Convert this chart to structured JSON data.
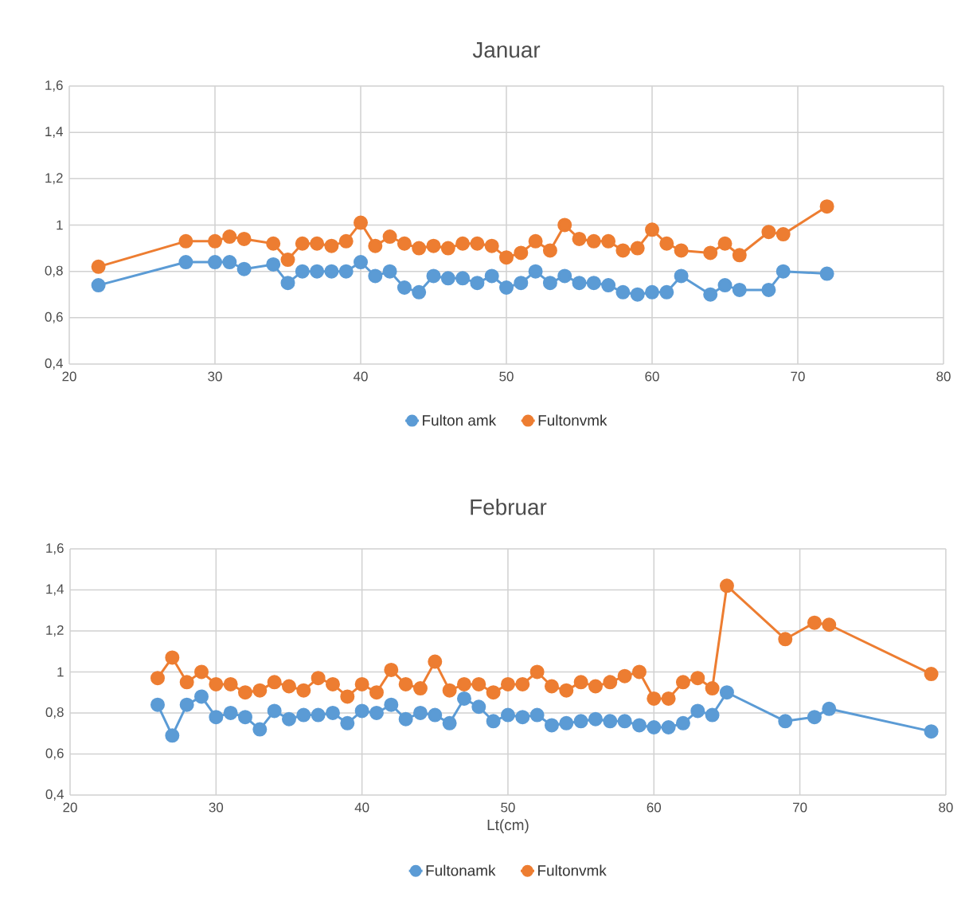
{
  "chart_data": [
    {
      "type": "line",
      "title": "Januar",
      "xlim": [
        20,
        80
      ],
      "xticks": [
        20,
        30,
        40,
        50,
        60,
        70,
        80
      ],
      "ylim": [
        0.4,
        1.6
      ],
      "yticks": [
        {
          "value": 0.4,
          "label": "0,4"
        },
        {
          "value": 0.6,
          "label": "0,6"
        },
        {
          "value": 0.8,
          "label": "0,8"
        },
        {
          "value": 1,
          "label": "1"
        },
        {
          "value": 1.2,
          "label": "1,2"
        },
        {
          "value": 1.4,
          "label": "1,4"
        },
        {
          "value": 1.6,
          "label": "1,6"
        }
      ],
      "grid": true,
      "legend": "bottom",
      "marker": "circle",
      "line_style": "solid",
      "x": [
        22,
        28,
        30,
        31,
        32,
        34,
        35,
        36,
        37,
        38,
        39,
        40,
        41,
        42,
        43,
        44,
        45,
        46,
        47,
        48,
        49,
        50,
        51,
        52,
        53,
        54,
        55,
        56,
        57,
        58,
        59,
        60,
        61,
        62,
        64,
        65,
        66,
        68,
        69,
        72
      ],
      "series": [
        {
          "name": "Fulton amk",
          "color": "#5b9bd5",
          "values": [
            0.74,
            0.84,
            0.84,
            0.84,
            0.81,
            0.83,
            0.75,
            0.8,
            0.8,
            0.8,
            0.8,
            0.84,
            0.78,
            0.8,
            0.73,
            0.71,
            0.78,
            0.77,
            0.77,
            0.75,
            0.78,
            0.73,
            0.75,
            0.8,
            0.75,
            0.78,
            0.75,
            0.75,
            0.74,
            0.71,
            0.7,
            0.71,
            0.71,
            0.78,
            0.7,
            0.74,
            0.72,
            0.72,
            0.8,
            0.79
          ]
        },
        {
          "name": "Fultonvmk",
          "color": "#ed7d31",
          "values": [
            0.82,
            0.93,
            0.93,
            0.95,
            0.94,
            0.92,
            0.85,
            0.92,
            0.92,
            0.91,
            0.93,
            1.01,
            0.91,
            0.95,
            0.92,
            0.9,
            0.91,
            0.9,
            0.92,
            0.92,
            0.91,
            0.86,
            0.88,
            0.93,
            0.89,
            1.0,
            0.94,
            0.93,
            0.93,
            0.89,
            0.9,
            0.98,
            0.92,
            0.89,
            0.88,
            0.92,
            0.87,
            0.97,
            0.96,
            1.08
          ]
        }
      ]
    },
    {
      "type": "line",
      "title": "Februar",
      "xlabel": "Lt(cm)",
      "xlim": [
        20,
        80
      ],
      "xticks": [
        20,
        30,
        40,
        50,
        60,
        70,
        80
      ],
      "ylim": [
        0.4,
        1.6
      ],
      "yticks": [
        {
          "value": 0.4,
          "label": "0,4"
        },
        {
          "value": 0.6,
          "label": "0,6"
        },
        {
          "value": 0.8,
          "label": "0,8"
        },
        {
          "value": 1,
          "label": "1"
        },
        {
          "value": 1.2,
          "label": "1,2"
        },
        {
          "value": 1.4,
          "label": "1,4"
        },
        {
          "value": 1.6,
          "label": "1,6"
        }
      ],
      "grid": true,
      "legend": "bottom",
      "marker": "circle",
      "line_style": "solid",
      "x": [
        26,
        27,
        28,
        29,
        30,
        31,
        32,
        33,
        34,
        35,
        36,
        37,
        38,
        39,
        40,
        41,
        42,
        43,
        44,
        45,
        46,
        47,
        48,
        49,
        50,
        51,
        52,
        53,
        54,
        55,
        56,
        57,
        58,
        59,
        60,
        61,
        62,
        63,
        64,
        65,
        69,
        71,
        72,
        79
      ],
      "series": [
        {
          "name": "Fultonamk",
          "color": "#5b9bd5",
          "values": [
            0.84,
            0.69,
            0.84,
            0.88,
            0.78,
            0.8,
            0.78,
            0.72,
            0.81,
            0.77,
            0.79,
            0.79,
            0.8,
            0.75,
            0.81,
            0.8,
            0.84,
            0.77,
            0.8,
            0.79,
            0.75,
            0.87,
            0.83,
            0.76,
            0.79,
            0.78,
            0.79,
            0.74,
            0.75,
            0.76,
            0.77,
            0.76,
            0.76,
            0.74,
            0.73,
            0.73,
            0.75,
            0.81,
            0.79,
            0.9,
            0.76,
            0.78,
            0.82,
            0.71
          ]
        },
        {
          "name": "Fultonvmk",
          "color": "#ed7d31",
          "values": [
            0.97,
            1.07,
            0.95,
            1.0,
            0.94,
            0.94,
            0.9,
            0.91,
            0.95,
            0.93,
            0.91,
            0.97,
            0.94,
            0.88,
            0.94,
            0.9,
            1.01,
            0.94,
            0.92,
            1.05,
            0.91,
            0.94,
            0.94,
            0.9,
            0.94,
            0.94,
            1.0,
            0.93,
            0.91,
            0.95,
            0.93,
            0.95,
            0.98,
            1.0,
            0.87,
            0.87,
            0.95,
            0.97,
            0.92,
            1.42,
            1.16,
            1.24,
            1.23,
            0.99
          ]
        }
      ]
    }
  ]
}
